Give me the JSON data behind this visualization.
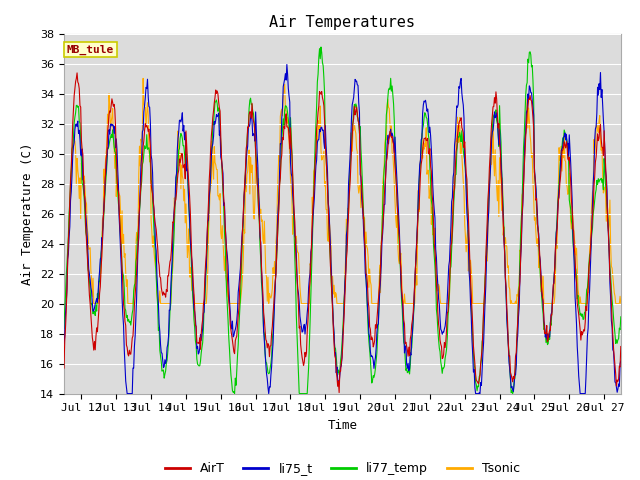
{
  "title": "Air Temperatures",
  "ylabel": "Air Temperature (C)",
  "xlabel": "Time",
  "site_label": "MB_tule",
  "ylim": [
    14,
    38
  ],
  "yticks": [
    14,
    16,
    18,
    20,
    22,
    24,
    26,
    28,
    30,
    32,
    34,
    36,
    38
  ],
  "xtick_labels": [
    "Jul 12",
    "Jul 13",
    "Jul 14",
    "Jul 15",
    "Jul 16",
    "Jul 17",
    "Jul 18",
    "Jul 19",
    "Jul 20",
    "Jul 21",
    "Jul 22",
    "Jul 23",
    "Jul 24",
    "Jul 25",
    "Jul 26",
    "Jul 27"
  ],
  "colors": {
    "AirT": "#cc0000",
    "li75_t": "#0000cc",
    "li77_temp": "#00cc00",
    "Tsonic": "#ffaa00"
  },
  "background_color": "#e8e8e8",
  "plot_bg": "#dcdcdc",
  "site_label_bg": "#ffffcc",
  "site_label_fg": "#990000",
  "site_label_edge": "#cccc00",
  "grid_color": "#ffffff",
  "title_fontsize": 11,
  "axis_label_fontsize": 9,
  "tick_fontsize": 8,
  "legend_fontsize": 9,
  "linewidth": 0.8,
  "n_days": 16,
  "pts_per_day": 48
}
